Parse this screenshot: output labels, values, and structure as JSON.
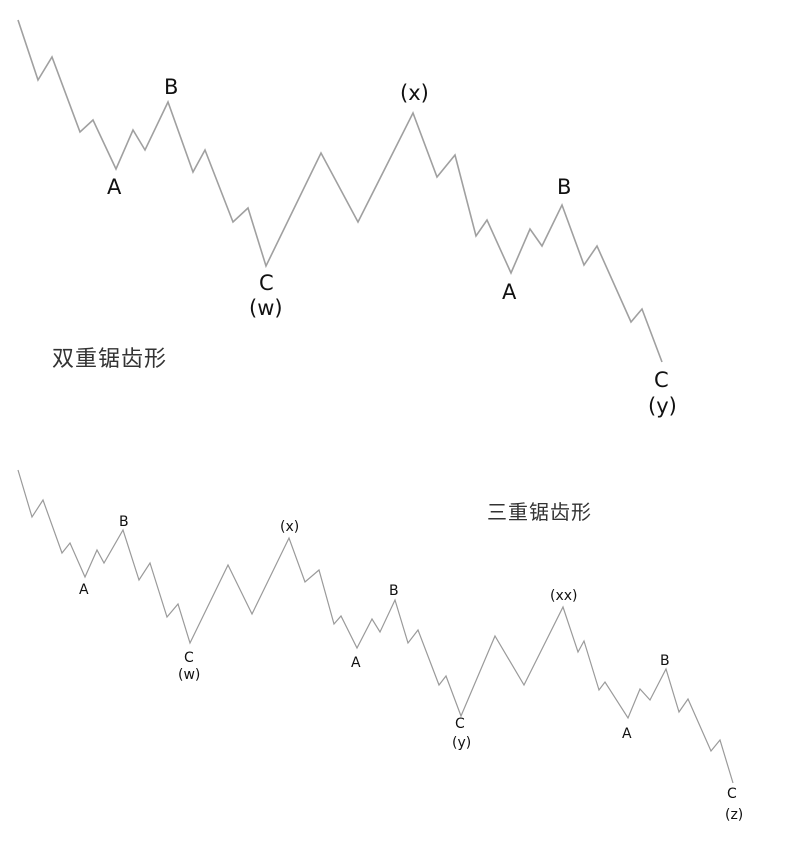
{
  "diagrams": [
    {
      "title": "双重锯齿形",
      "labels": [
        "A",
        "B",
        "C",
        "(w)",
        "(x)",
        "A",
        "B",
        "C",
        "(y)"
      ]
    },
    {
      "title": "三重锯齿形",
      "labels": [
        "A",
        "B",
        "C",
        "(w)",
        "(x)",
        "A",
        "B",
        "C",
        "(y)",
        "(xx)",
        "A",
        "B",
        "C",
        "(z)"
      ]
    }
  ]
}
